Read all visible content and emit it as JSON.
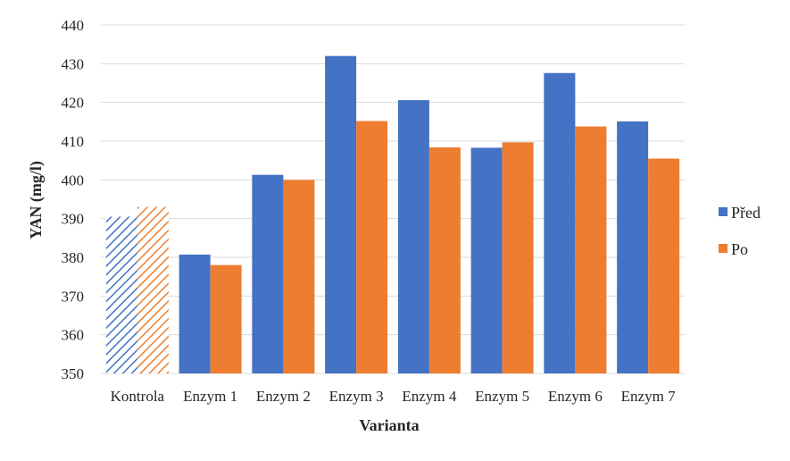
{
  "chart_data": {
    "type": "bar",
    "title": "",
    "xlabel": "Varianta",
    "ylabel": "YAN (mg/l)",
    "ylim": [
      350,
      440
    ],
    "yticks": [
      350,
      360,
      370,
      380,
      390,
      400,
      410,
      420,
      430,
      440
    ],
    "grid": true,
    "legend_position": "right",
    "categories": [
      "Kontrola",
      "Enzym 1",
      "Enzym 2",
      "Enzym 3",
      "Enzym 4",
      "Enzym 5",
      "Enzym 6",
      "Enzym 7"
    ],
    "hatched_categories": [
      "Kontrola"
    ],
    "series": [
      {
        "name": "Před",
        "color": "#4472c4",
        "values": [
          390.5,
          380.7,
          401.3,
          432.0,
          420.6,
          408.3,
          427.6,
          415.1
        ]
      },
      {
        "name": "Po",
        "color": "#ed7d31",
        "values": [
          393.0,
          378.0,
          400.0,
          415.2,
          408.4,
          409.7,
          413.8,
          405.5
        ]
      }
    ]
  }
}
